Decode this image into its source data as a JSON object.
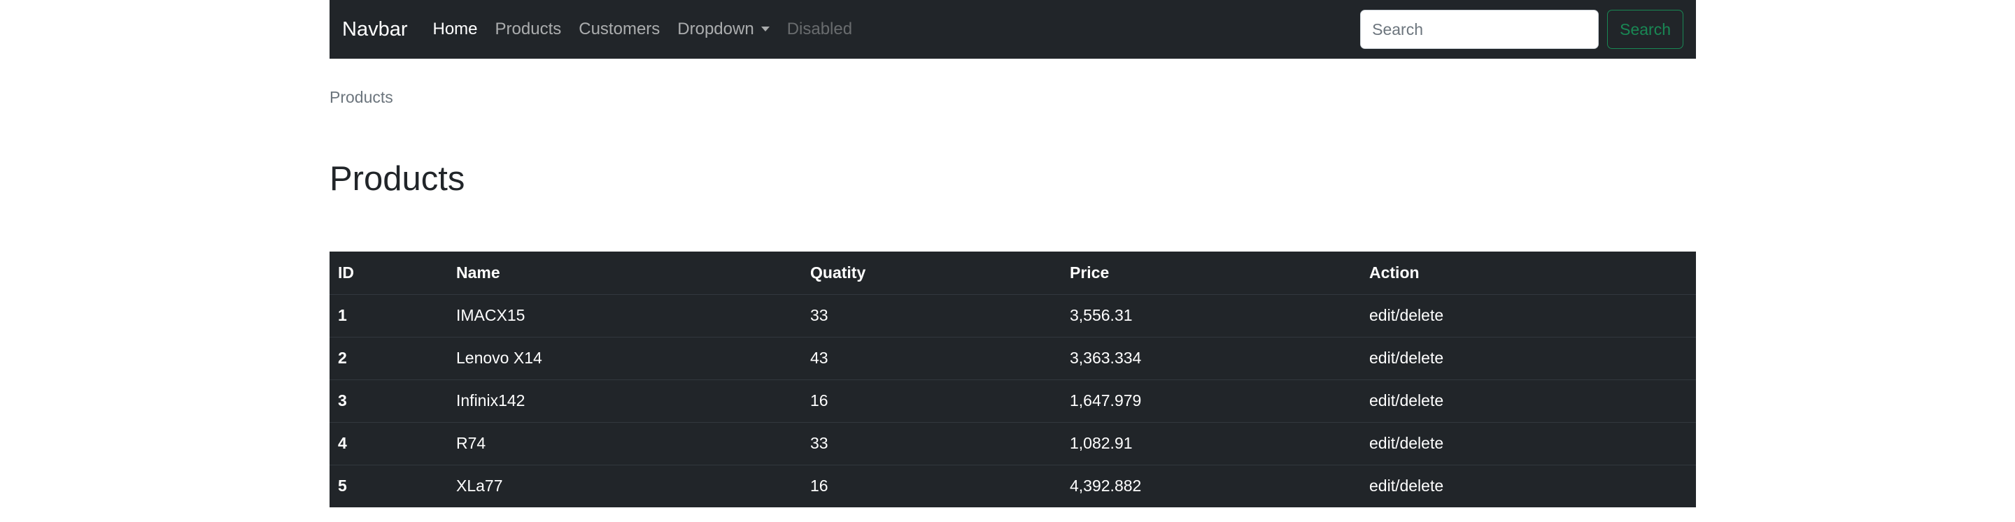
{
  "navbar": {
    "brand": "Navbar",
    "links": [
      {
        "label": "Home",
        "state": "active"
      },
      {
        "label": "Products",
        "state": "normal"
      },
      {
        "label": "Customers",
        "state": "normal"
      },
      {
        "label": "Dropdown",
        "state": "normal"
      },
      {
        "label": "Disabled",
        "state": "disabled"
      }
    ],
    "search": {
      "placeholder": "Search",
      "value": "",
      "button_label": "Search"
    }
  },
  "breadcrumb": "Products",
  "page_title": "Products",
  "table": {
    "headers": [
      "ID",
      "Name",
      "Quatity",
      "Price",
      "Action"
    ],
    "rows": [
      {
        "id": "1",
        "name": "IMACX15",
        "quantity": "33",
        "price": "3,556.31",
        "action": "edit/delete"
      },
      {
        "id": "2",
        "name": "Lenovo X14",
        "quantity": "43",
        "price": "3,363.334",
        "action": "edit/delete"
      },
      {
        "id": "3",
        "name": "Infinix142",
        "quantity": "16",
        "price": "1,647.979",
        "action": "edit/delete"
      },
      {
        "id": "4",
        "name": "R74",
        "quantity": "33",
        "price": "1,082.91",
        "action": "edit/delete"
      },
      {
        "id": "5",
        "name": "XLa77",
        "quantity": "16",
        "price": "4,392.882",
        "action": "edit/delete"
      }
    ]
  },
  "colors": {
    "navbar_bg": "#212529",
    "success": "#198754",
    "muted": "#6c757d"
  }
}
